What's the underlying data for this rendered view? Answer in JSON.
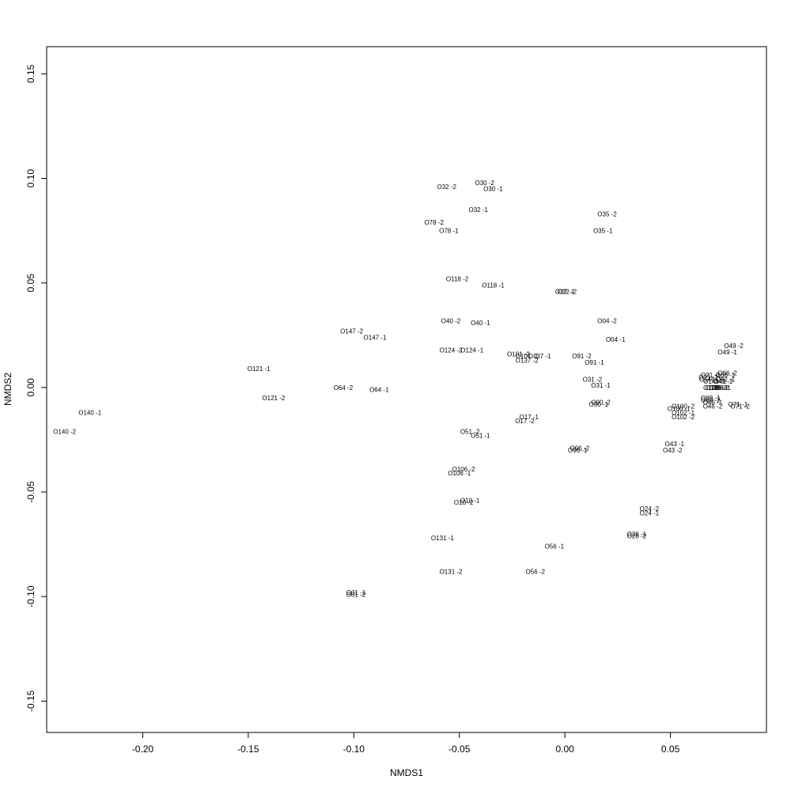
{
  "chart_data": {
    "type": "scatter",
    "title": "",
    "xlabel": "NMDS1",
    "ylabel": "NMDS2",
    "xlim": [
      -0.2455,
      0.0955
    ],
    "ylim": [
      -0.165,
      0.163
    ],
    "x_ticks": [
      -0.2,
      -0.15,
      -0.1,
      -0.05,
      0.0,
      0.05
    ],
    "x_tick_labels": [
      "-0.20",
      "-0.15",
      "-0.10",
      "-0.05",
      "0.00",
      "0.05"
    ],
    "y_ticks": [
      -0.15,
      -0.1,
      -0.05,
      0.0,
      0.05,
      0.1,
      0.15
    ],
    "y_tick_labels": [
      "-0.15",
      "-0.10",
      "-0.05",
      "0.00",
      "0.05",
      "0.10",
      "0.15"
    ],
    "grid": false,
    "marker": "text-label",
    "points": [
      {
        "label": "O30 -2",
        "x": -0.038,
        "y": 0.098
      },
      {
        "label": "O30 -1",
        "x": -0.034,
        "y": 0.095
      },
      {
        "label": "O32 -2",
        "x": -0.056,
        "y": 0.096
      },
      {
        "label": "O32 -1",
        "x": -0.041,
        "y": 0.085
      },
      {
        "label": "O35 -2",
        "x": 0.02,
        "y": 0.083
      },
      {
        "label": "O35 -1",
        "x": 0.018,
        "y": 0.075
      },
      {
        "label": "O78 -2",
        "x": -0.062,
        "y": 0.079
      },
      {
        "label": "O78 -1",
        "x": -0.055,
        "y": 0.075
      },
      {
        "label": "O118 -2",
        "x": -0.051,
        "y": 0.052
      },
      {
        "label": "O118 -1",
        "x": -0.034,
        "y": 0.049
      },
      {
        "label": "O22 -1",
        "x": 0.0,
        "y": 0.046
      },
      {
        "label": "O22 -2",
        "x": 0.001,
        "y": 0.046
      },
      {
        "label": "O04 -2",
        "x": 0.02,
        "y": 0.032
      },
      {
        "label": "O04 -1",
        "x": 0.024,
        "y": 0.023
      },
      {
        "label": "O40 -2",
        "x": -0.054,
        "y": 0.032
      },
      {
        "label": "O40 -1",
        "x": -0.04,
        "y": 0.031
      },
      {
        "label": "O147 -2",
        "x": -0.101,
        "y": 0.027
      },
      {
        "label": "O147 -1",
        "x": -0.09,
        "y": 0.024
      },
      {
        "label": "O124 -2",
        "x": -0.054,
        "y": 0.018
      },
      {
        "label": "O124 -1",
        "x": -0.044,
        "y": 0.018
      },
      {
        "label": "O101 -2",
        "x": -0.022,
        "y": 0.016
      },
      {
        "label": "O101 -1",
        "x": -0.018,
        "y": 0.015
      },
      {
        "label": "O137 -1",
        "x": -0.012,
        "y": 0.015
      },
      {
        "label": "O137 -2",
        "x": -0.018,
        "y": 0.013
      },
      {
        "label": "O91 -2",
        "x": 0.008,
        "y": 0.015
      },
      {
        "label": "O91 -1",
        "x": 0.014,
        "y": 0.012
      },
      {
        "label": "O49 -2",
        "x": 0.08,
        "y": 0.02
      },
      {
        "label": "O49 -1",
        "x": 0.077,
        "y": 0.017
      },
      {
        "label": "O121 -1",
        "x": -0.145,
        "y": 0.009
      },
      {
        "label": "O121 -2",
        "x": -0.138,
        "y": -0.005
      },
      {
        "label": "O64 -2",
        "x": -0.105,
        "y": 0.0
      },
      {
        "label": "O64 -1",
        "x": -0.088,
        "y": -0.001
      },
      {
        "label": "O31 -2",
        "x": 0.013,
        "y": 0.004
      },
      {
        "label": "O31 -1",
        "x": 0.017,
        "y": 0.001
      },
      {
        "label": "O21 -1",
        "x": 0.069,
        "y": 0.006
      },
      {
        "label": "O21 -2",
        "x": 0.068,
        "y": 0.005
      },
      {
        "label": "O146 -2",
        "x": 0.069,
        "y": 0.004
      },
      {
        "label": "O146 -1",
        "x": 0.071,
        "y": 0.003
      },
      {
        "label": "O66 -2",
        "x": 0.077,
        "y": 0.007
      },
      {
        "label": "O66 -1",
        "x": 0.076,
        "y": 0.006
      },
      {
        "label": "O42 -1",
        "x": 0.076,
        "y": 0.004
      },
      {
        "label": "O42 -2",
        "x": 0.075,
        "y": 0.003
      },
      {
        "label": "O128 -2",
        "x": 0.071,
        "y": 0.0
      },
      {
        "label": "O128 -1",
        "x": 0.072,
        "y": 0.0
      },
      {
        "label": "O88 -1",
        "x": 0.074,
        "y": 0.0
      },
      {
        "label": "O88 -2",
        "x": 0.073,
        "y": 0.0
      },
      {
        "label": "O89 -1",
        "x": 0.069,
        "y": -0.005
      },
      {
        "label": "O89 -2",
        "x": 0.069,
        "y": -0.006
      },
      {
        "label": "O46 -1",
        "x": 0.07,
        "y": -0.007
      },
      {
        "label": "O46 -2",
        "x": 0.07,
        "y": -0.009
      },
      {
        "label": "O71 -1",
        "x": 0.082,
        "y": -0.008
      },
      {
        "label": "O71 -2",
        "x": 0.083,
        "y": -0.009
      },
      {
        "label": "O100 -2",
        "x": 0.056,
        "y": -0.009
      },
      {
        "label": "O100 -1",
        "x": 0.054,
        "y": -0.01
      },
      {
        "label": "O102 -1",
        "x": 0.056,
        "y": -0.012
      },
      {
        "label": "O102 -2",
        "x": 0.056,
        "y": -0.014
      },
      {
        "label": "O90 -2",
        "x": 0.017,
        "y": -0.007
      },
      {
        "label": "O90 -1",
        "x": 0.016,
        "y": -0.008
      },
      {
        "label": "O17 -1",
        "x": -0.017,
        "y": -0.014
      },
      {
        "label": "O17 -2",
        "x": -0.019,
        "y": -0.016
      },
      {
        "label": "O51 -2",
        "x": -0.045,
        "y": -0.021
      },
      {
        "label": "O51 -1",
        "x": -0.04,
        "y": -0.023
      },
      {
        "label": "O43 -1",
        "x": 0.052,
        "y": -0.027
      },
      {
        "label": "O43 -2",
        "x": 0.051,
        "y": -0.03
      },
      {
        "label": "O96 -2",
        "x": 0.007,
        "y": -0.029
      },
      {
        "label": "O96 -1",
        "x": 0.006,
        "y": -0.03
      },
      {
        "label": "O106 -2",
        "x": -0.048,
        "y": -0.039
      },
      {
        "label": "O106 -1",
        "x": -0.05,
        "y": -0.041
      },
      {
        "label": "O10 -1",
        "x": -0.045,
        "y": -0.054
      },
      {
        "label": "O10 -2",
        "x": -0.048,
        "y": -0.055
      },
      {
        "label": "O24 -2",
        "x": 0.04,
        "y": -0.058
      },
      {
        "label": "O24 -1",
        "x": 0.04,
        "y": -0.06
      },
      {
        "label": "O131 -1",
        "x": -0.058,
        "y": -0.072
      },
      {
        "label": "O131 -2",
        "x": -0.054,
        "y": -0.088
      },
      {
        "label": "O26 -1",
        "x": 0.034,
        "y": -0.07
      },
      {
        "label": "O26 -2",
        "x": 0.034,
        "y": -0.071
      },
      {
        "label": "O56 -1",
        "x": -0.005,
        "y": -0.076
      },
      {
        "label": "O56 -2",
        "x": -0.014,
        "y": -0.088
      },
      {
        "label": "O01 -1",
        "x": -0.099,
        "y": -0.098
      },
      {
        "label": "O01 -2",
        "x": -0.099,
        "y": -0.099
      },
      {
        "label": "O140 -1",
        "x": -0.225,
        "y": -0.012
      },
      {
        "label": "O140 -2",
        "x": -0.237,
        "y": -0.021
      }
    ]
  }
}
